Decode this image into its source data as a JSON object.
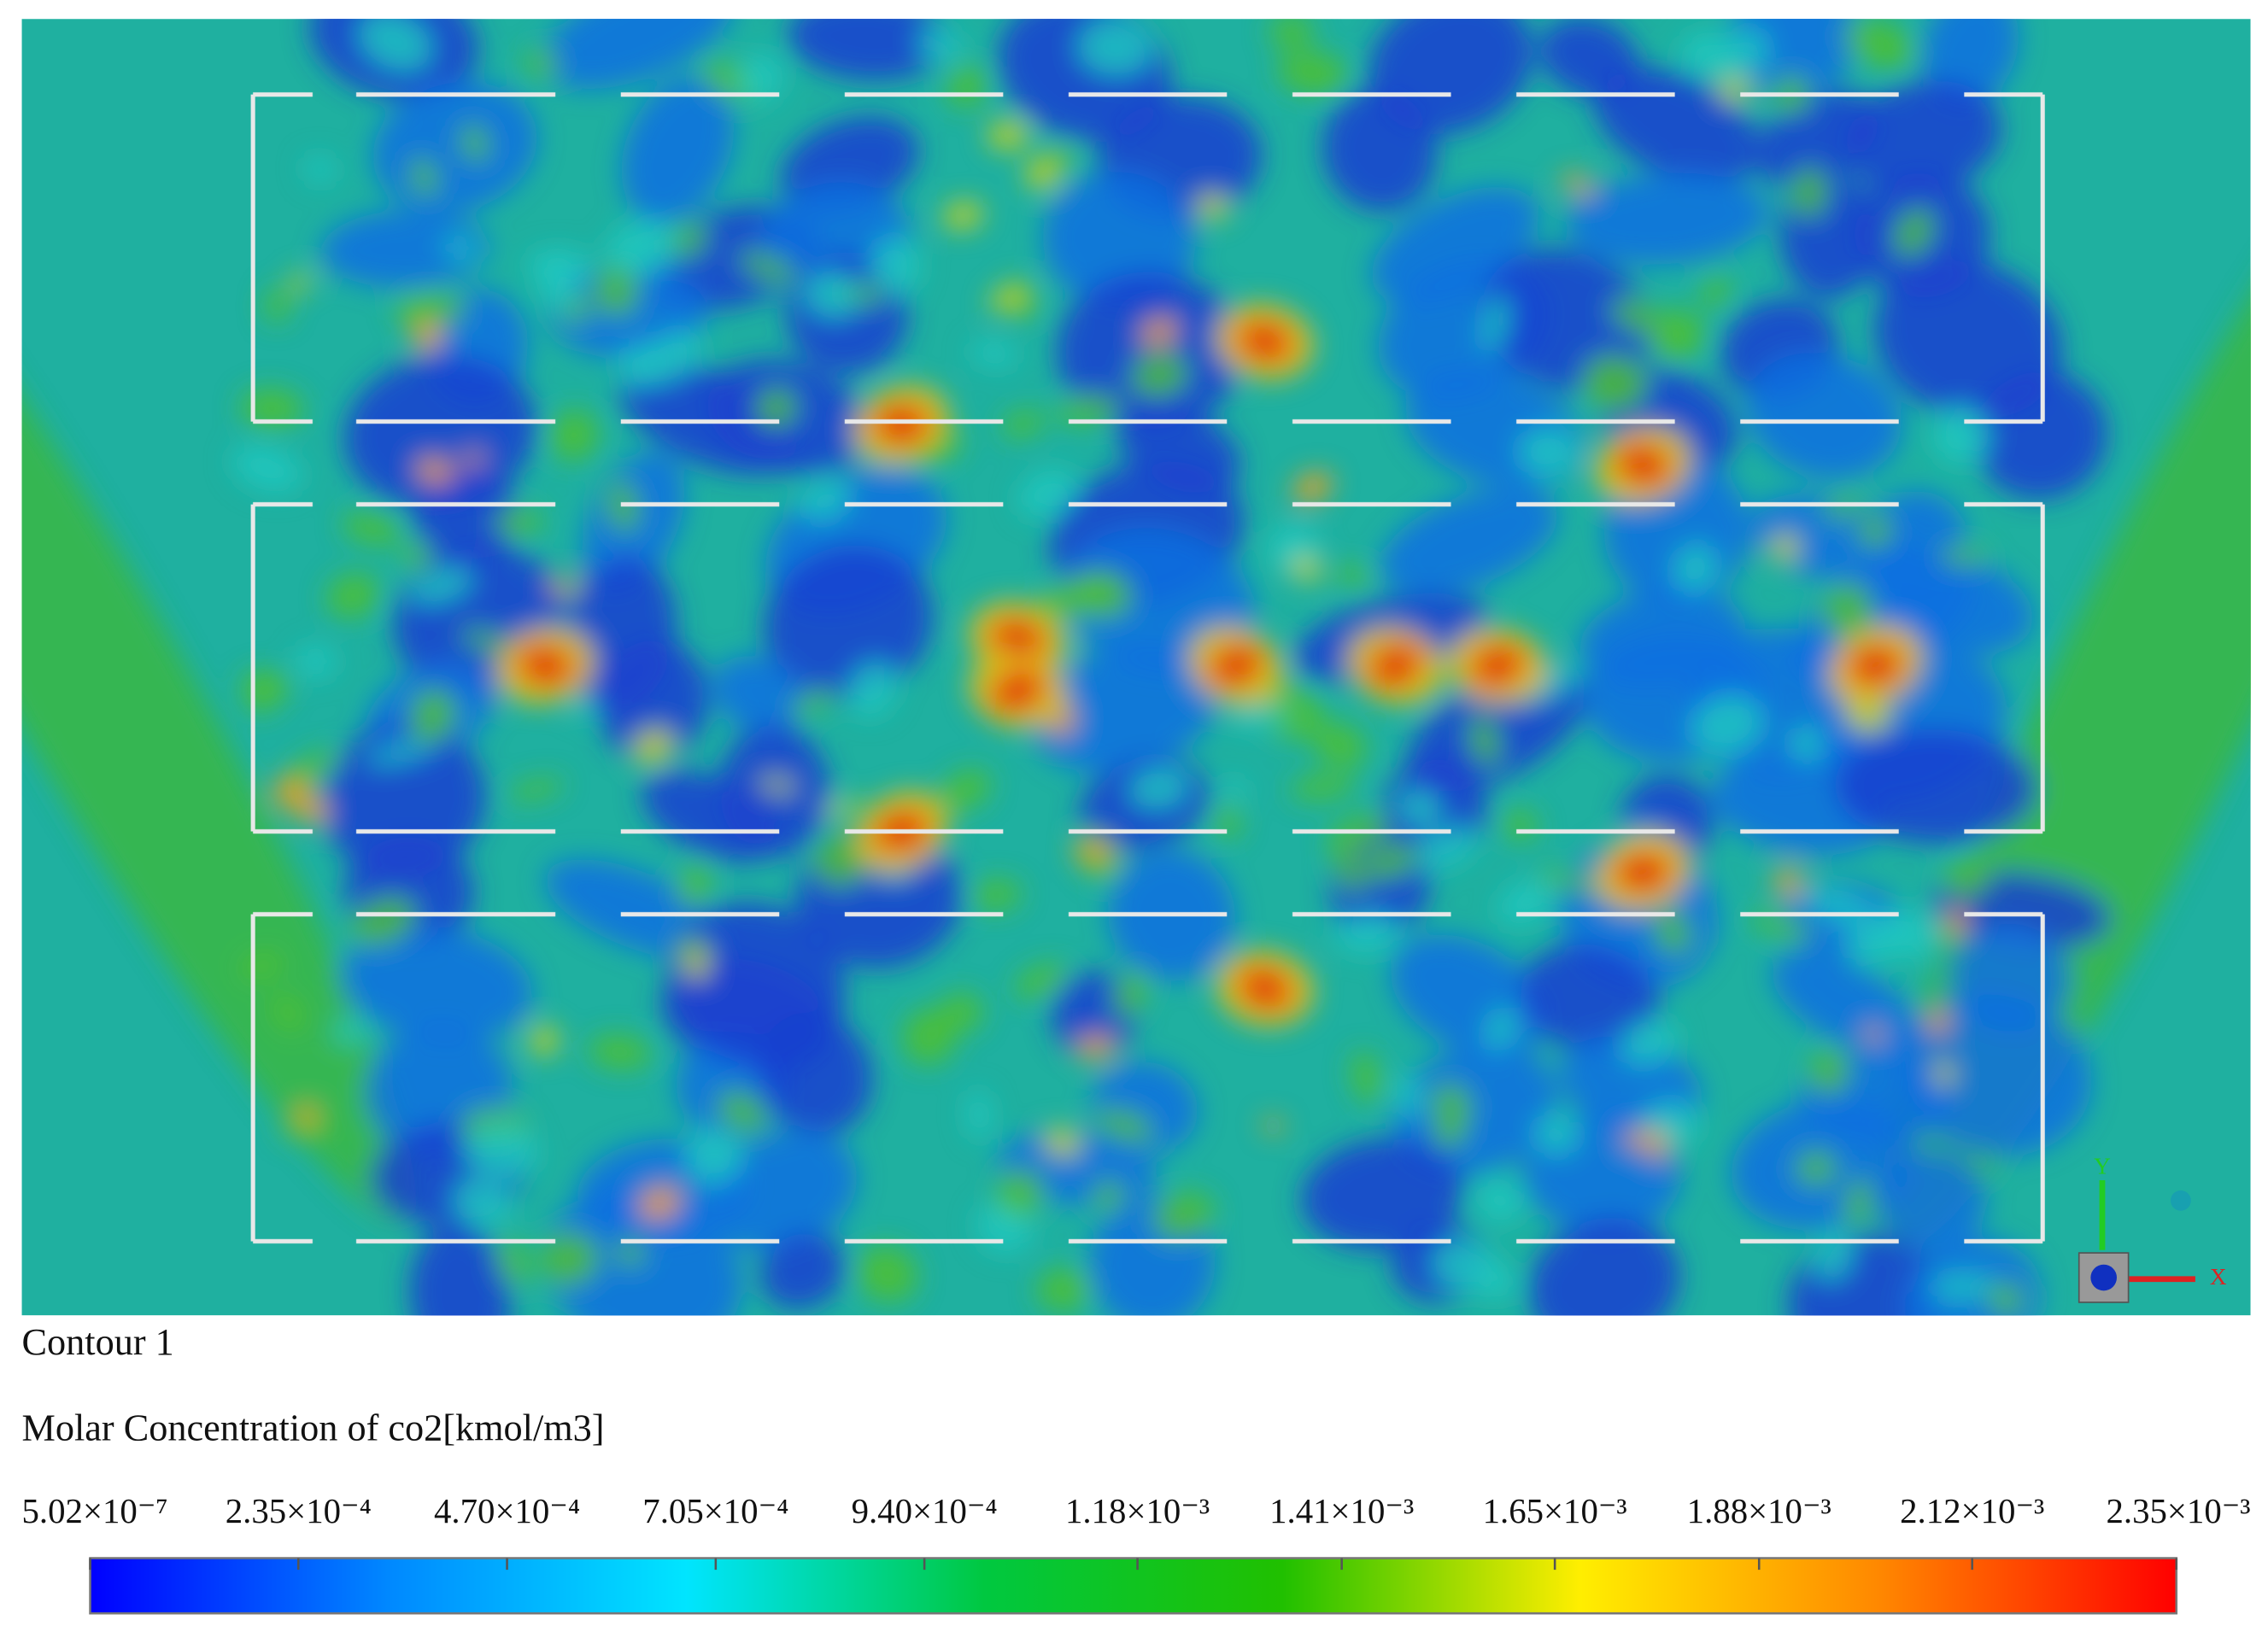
{
  "chart_data": {
    "type": "contour",
    "title": "Contour 1",
    "colorbar_label": "Molar Concentration of co2[kmol/m3]",
    "clim": [
      5.02e-07,
      0.00235
    ],
    "colormap": [
      "#0000ff",
      "#0088ff",
      "#00e5ff",
      "#00c840",
      "#20c000",
      "#ffee00",
      "#ff8800",
      "#ff0000"
    ],
    "colorbar_ticks": [
      {
        "value": 5.02e-07,
        "label": "5.02×10⁻⁷"
      },
      {
        "value": 0.000235,
        "label": "2.35×10⁻⁴"
      },
      {
        "value": 0.00047,
        "label": "4.70×10⁻⁴"
      },
      {
        "value": 0.000705,
        "label": "7.05×10⁻⁴"
      },
      {
        "value": 0.00094,
        "label": "9.40×10⁻⁴"
      },
      {
        "value": 0.00118,
        "label": "1.18×10⁻³"
      },
      {
        "value": 0.00141,
        "label": "1.41×10⁻³"
      },
      {
        "value": 0.00165,
        "label": "1.65×10⁻³"
      },
      {
        "value": 0.00188,
        "label": "1.88×10⁻³"
      },
      {
        "value": 0.00212,
        "label": "2.12×10⁻³"
      },
      {
        "value": 0.00235,
        "label": "2.35×10⁻³"
      }
    ]
  }
}
